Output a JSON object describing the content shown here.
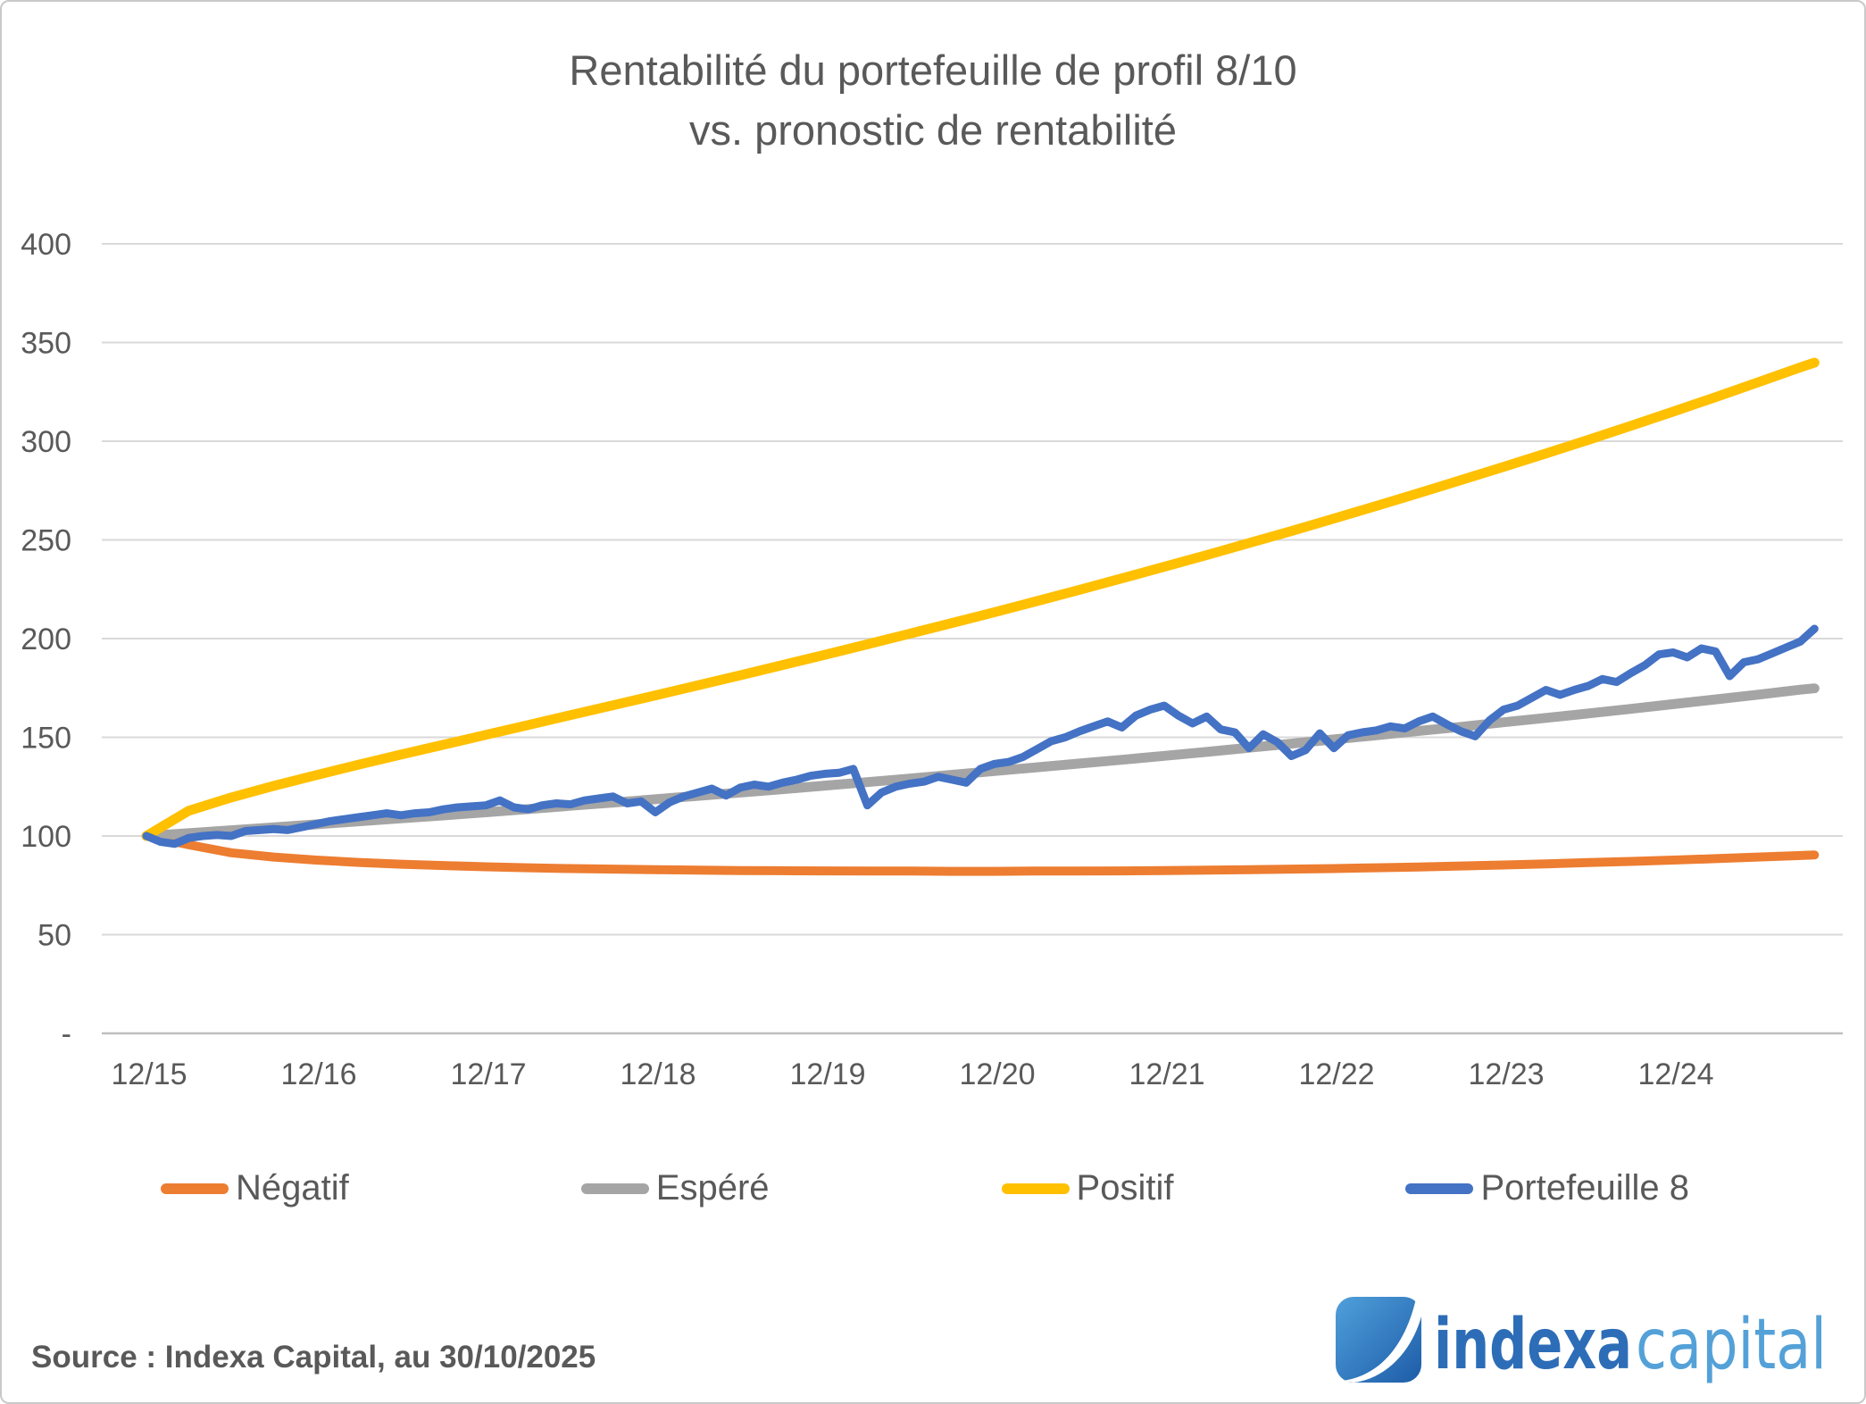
{
  "title": {
    "line1": "Rentabilité du portefeuille de profil 8/10",
    "line2": "vs. pronostic de rentabilité"
  },
  "source": {
    "text": "Source : Indexa Capital, au 30/10/2025"
  },
  "logo": {
    "word1": "indexa",
    "word2": "capital",
    "word1_color": "#2d6db7",
    "word2_color": "#54a1d8",
    "icon_gradient_start": "#4fa0db",
    "icon_gradient_end": "#1e5ca8"
  },
  "chart_data": {
    "type": "line",
    "title": "Rentabilité du portefeuille de profil 8/10 vs. pronostic de rentabilité",
    "xlabel": "",
    "ylabel": "",
    "ylim": [
      0,
      400
    ],
    "grid": true,
    "legend_position": "bottom",
    "grid_color": "#d9d9d9",
    "axis_color": "#bfbfbf",
    "x_unit": "months since 12/2015",
    "x_tick_months": [
      0,
      12,
      24,
      36,
      48,
      60,
      72,
      84,
      96,
      108
    ],
    "x_tick_labels": [
      "12/15",
      "12/16",
      "12/17",
      "12/18",
      "12/19",
      "12/20",
      "12/21",
      "12/22",
      "12/23",
      "12/24"
    ],
    "y_tick_values": [
      400,
      350,
      300,
      250,
      200,
      150,
      100,
      50,
      0
    ],
    "y_tick_labels": [
      "400",
      "350",
      "300",
      "250",
      "200",
      "150",
      "100",
      "50",
      "-"
    ],
    "series": [
      {
        "name": "Négatif",
        "color": "#ED7D31",
        "stroke_width": 10,
        "months": [
          0,
          3,
          6,
          9,
          12,
          15,
          18,
          21,
          24,
          27,
          30,
          33,
          36,
          39,
          42,
          45,
          48,
          51,
          54,
          57,
          60,
          63,
          66,
          69,
          72,
          75,
          78,
          81,
          84,
          87,
          90,
          93,
          96,
          99,
          102,
          105,
          108,
          111,
          114,
          117,
          118
        ],
        "values": [
          100,
          95.5,
          91.5,
          89.3,
          87.8,
          86.6,
          85.7,
          85.0,
          84.4,
          83.9,
          83.5,
          83.2,
          82.9,
          82.7,
          82.5,
          82.4,
          82.3,
          82.2,
          82.2,
          82.1,
          82.1,
          82.2,
          82.2,
          82.3,
          82.5,
          82.7,
          82.9,
          83.2,
          83.5,
          83.9,
          84.3,
          84.8,
          85.3,
          85.9,
          86.5,
          87.1,
          87.8,
          88.5,
          89.3,
          90.1,
          90.4
        ]
      },
      {
        "name": "Espéré",
        "color": "#A5A5A5",
        "stroke_width": 11,
        "months": [
          0,
          3,
          6,
          9,
          12,
          15,
          18,
          21,
          24,
          27,
          30,
          33,
          36,
          39,
          42,
          45,
          48,
          51,
          54,
          57,
          60,
          63,
          66,
          69,
          72,
          75,
          78,
          81,
          84,
          87,
          90,
          93,
          96,
          99,
          102,
          105,
          108,
          111,
          114,
          117,
          118
        ],
        "values": [
          100,
          101.4,
          102.9,
          104.4,
          105.9,
          107.4,
          108.9,
          110.4,
          112.0,
          113.6,
          115.3,
          116.9,
          118.6,
          120.3,
          122.0,
          123.7,
          125.5,
          127.3,
          129.1,
          131.0,
          132.9,
          134.8,
          136.7,
          138.6,
          140.6,
          142.6,
          144.7,
          146.8,
          148.9,
          151.0,
          153.2,
          155.3,
          157.6,
          159.8,
          162.1,
          164.4,
          166.8,
          169.2,
          171.6,
          174.1,
          174.8
        ]
      },
      {
        "name": "Positif",
        "color": "#FFC000",
        "stroke_width": 11,
        "months": [
          0,
          3,
          6,
          9,
          12,
          15,
          18,
          21,
          24,
          27,
          30,
          33,
          36,
          39,
          42,
          45,
          48,
          51,
          54,
          57,
          60,
          63,
          66,
          69,
          72,
          75,
          78,
          81,
          84,
          87,
          90,
          93,
          96,
          99,
          102,
          105,
          108,
          111,
          114,
          117,
          118
        ],
        "values": [
          100,
          112.8,
          119.5,
          125.4,
          130.8,
          136.1,
          141.2,
          146.2,
          151.2,
          156.2,
          161.2,
          166.2,
          171.2,
          176.3,
          181.4,
          186.6,
          191.8,
          197.1,
          202.5,
          207.9,
          213.4,
          219.0,
          224.7,
          230.5,
          236.4,
          242.3,
          248.4,
          254.5,
          260.8,
          267.2,
          273.7,
          280.3,
          287.0,
          293.8,
          300.7,
          307.8,
          315.0,
          322.3,
          329.8,
          337.4,
          339.8
        ]
      },
      {
        "name": "Portefeuille 8",
        "color": "#4472C4",
        "stroke_width": 9,
        "months": null,
        "values": [
          100,
          97,
          96,
          99,
          100,
          100.5,
          100,
          102.5,
          103,
          103.5,
          103,
          104.5,
          106,
          107.5,
          108.5,
          109.5,
          110.5,
          111.5,
          110.5,
          111.5,
          112,
          113.5,
          114.5,
          115,
          115.5,
          118,
          114.5,
          113.5,
          115.5,
          116.5,
          116,
          118,
          119,
          120,
          116.5,
          117.5,
          112,
          117,
          120,
          122,
          124,
          120.5,
          124.5,
          126,
          125,
          127,
          128.5,
          130.5,
          131.5,
          132,
          134,
          115.5,
          122,
          125,
          126.5,
          127.5,
          130,
          128.5,
          127,
          134,
          136.5,
          137.5,
          140,
          144,
          148,
          150,
          153,
          155.5,
          158,
          155,
          161,
          164,
          166,
          161,
          157,
          160.5,
          154,
          152.5,
          144.5,
          151.5,
          147.5,
          140.5,
          143.5,
          152,
          144.5,
          151,
          152.5,
          153.5,
          155.5,
          154.5,
          158,
          160.5,
          156.5,
          153,
          150.5,
          158.5,
          164,
          166,
          170,
          174,
          171.5,
          174,
          176,
          179.5,
          178,
          182.5,
          186.5,
          192,
          193,
          190.5,
          195,
          193.5,
          181,
          188,
          189.5,
          192.5,
          195.5,
          198.5,
          205
        ]
      }
    ]
  }
}
